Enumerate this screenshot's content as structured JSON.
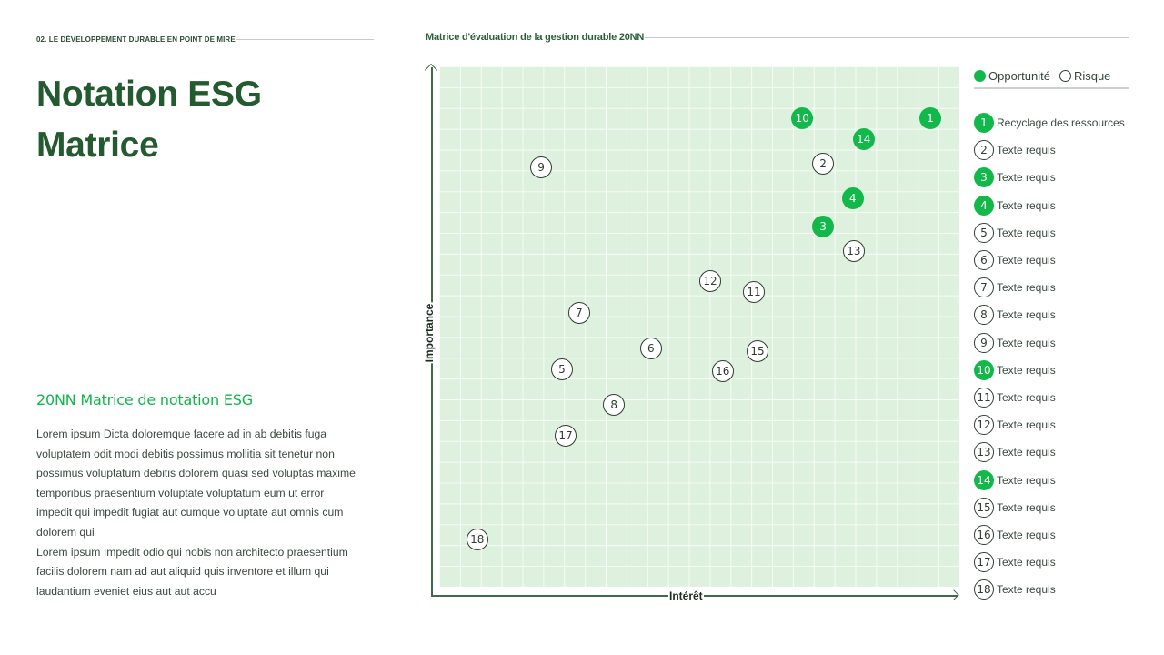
{
  "header": {
    "section_label": "02. LE DÉVELOPPEMENT DURABLE EN POINT DE MIRE",
    "title_line1": "Notation ESG",
    "title_line2": "Matrice"
  },
  "left": {
    "subtitle": "20NN Matrice de notation ESG",
    "paragraph1": "Lorem ipsum Dicta doloremque facere ad in ab debitis fuga voluptatem odit modi debitis possimus mollitia sit tenetur non possimus voluptatum debitis dolorem quasi sed voluptas maxime temporibus praesentium voluptate voluptatum eum ut error impedit qui impedit fugiat aut cumque voluptate aut omnis cum dolorem qui",
    "paragraph2": "Lorem ipsum Impedit odio qui nobis non architecto praesentium facilis dolorem nam ad aut aliquid quis inventore et illum qui laudantium eveniet eius aut aut accu"
  },
  "chart_header": {
    "label": "Matrice d'évaluation de la gestion durable 20NN"
  },
  "colors": {
    "opportunity": "#12b84a",
    "risk_border": "#2f3b33",
    "title": "#235a2f",
    "plot_bg": "#ddf1de"
  },
  "legend": {
    "opportunity_label": "Opportunité",
    "risk_label": "Risque",
    "items": [
      {
        "id": "1",
        "label": "Recyclage des ressources",
        "type": "opportunity"
      },
      {
        "id": "2",
        "label": "Texte requis",
        "type": "risk"
      },
      {
        "id": "3",
        "label": "Texte requis",
        "type": "opportunity"
      },
      {
        "id": "4",
        "label": "Texte requis",
        "type": "opportunity"
      },
      {
        "id": "5",
        "label": "Texte requis",
        "type": "risk"
      },
      {
        "id": "6",
        "label": "Texte requis",
        "type": "risk"
      },
      {
        "id": "7",
        "label": "Texte requis",
        "type": "risk"
      },
      {
        "id": "8",
        "label": "Texte requis",
        "type": "risk"
      },
      {
        "id": "9",
        "label": "Texte requis",
        "type": "risk"
      },
      {
        "id": "10",
        "label": "Texte requis",
        "type": "opportunity"
      },
      {
        "id": "11",
        "label": "Texte requis",
        "type": "risk"
      },
      {
        "id": "12",
        "label": "Texte requis",
        "type": "risk"
      },
      {
        "id": "13",
        "label": "Texte requis",
        "type": "risk"
      },
      {
        "id": "14",
        "label": "Texte requis",
        "type": "opportunity"
      },
      {
        "id": "15",
        "label": "Texte requis",
        "type": "risk"
      },
      {
        "id": "16",
        "label": "Texte requis",
        "type": "risk"
      },
      {
        "id": "17",
        "label": "Texte requis",
        "type": "risk"
      },
      {
        "id": "18",
        "label": "Texte requis",
        "type": "risk"
      }
    ]
  },
  "chart_data": {
    "type": "scatter",
    "title": "Matrice d'évaluation de la gestion durable 20NN",
    "xlabel": "Intérêt",
    "ylabel": "Importance",
    "xlim": [
      0,
      100
    ],
    "ylim": [
      0,
      100
    ],
    "grid": true,
    "legend_position": "right",
    "series": [
      {
        "name": "Opportunité",
        "points": [
          {
            "id": "1",
            "x": 94.4,
            "y": 90.0
          },
          {
            "id": "3",
            "x": 73.8,
            "y": 69.2
          },
          {
            "id": "4",
            "x": 79.5,
            "y": 74.7
          },
          {
            "id": "10",
            "x": 69.8,
            "y": 90.0
          },
          {
            "id": "14",
            "x": 81.6,
            "y": 86.0
          }
        ]
      },
      {
        "name": "Risque",
        "points": [
          {
            "id": "2",
            "x": 73.8,
            "y": 81.3
          },
          {
            "id": "5",
            "x": 23.6,
            "y": 41.8
          },
          {
            "id": "6",
            "x": 40.7,
            "y": 45.8
          },
          {
            "id": "7",
            "x": 26.9,
            "y": 52.6
          },
          {
            "id": "8",
            "x": 33.6,
            "y": 35.0
          },
          {
            "id": "9",
            "x": 19.6,
            "y": 80.6
          },
          {
            "id": "11",
            "x": 60.5,
            "y": 56.6
          },
          {
            "id": "12",
            "x": 52.1,
            "y": 58.7
          },
          {
            "id": "13",
            "x": 79.7,
            "y": 64.5
          },
          {
            "id": "15",
            "x": 61.2,
            "y": 45.3
          },
          {
            "id": "16",
            "x": 54.5,
            "y": 41.4
          },
          {
            "id": "17",
            "x": 24.3,
            "y": 29.0
          },
          {
            "id": "18",
            "x": 7.3,
            "y": 9.1
          }
        ]
      }
    ]
  }
}
